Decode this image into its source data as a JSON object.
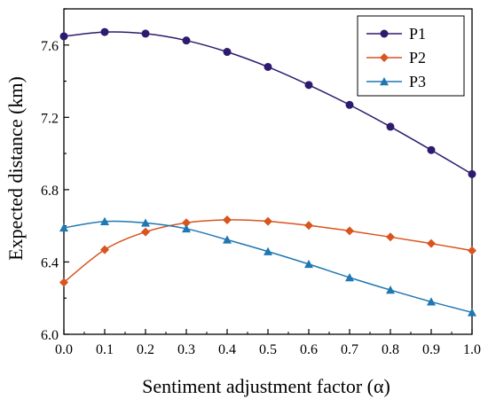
{
  "chart_data": {
    "type": "line",
    "xlabel": "Sentiment adjustment factor (α)",
    "ylabel": "Expected distance (km)",
    "x": [
      0.0,
      0.1,
      0.2,
      0.3,
      0.4,
      0.5,
      0.6,
      0.7,
      0.8,
      0.9,
      1.0
    ],
    "xlim": [
      0.0,
      1.0
    ],
    "ylim": [
      6.0,
      7.8
    ],
    "x_ticks": [
      "0.0",
      "0.1",
      "0.2",
      "0.3",
      "0.4",
      "0.5",
      "0.6",
      "0.7",
      "0.8",
      "0.9",
      "1.0"
    ],
    "y_ticks": [
      "6.0",
      "6.4",
      "6.8",
      "7.2",
      "7.6"
    ],
    "grid": false,
    "legend_position": "top-right",
    "series": [
      {
        "name": "P1",
        "color": "#2e1a6e",
        "marker": "circle",
        "values": [
          7.648,
          7.672,
          7.663,
          7.625,
          7.562,
          7.479,
          7.379,
          7.269,
          7.148,
          7.019,
          6.886
        ]
      },
      {
        "name": "P2",
        "color": "#d9541e",
        "marker": "diamond",
        "values": [
          6.287,
          6.468,
          6.566,
          6.617,
          6.633,
          6.625,
          6.602,
          6.572,
          6.538,
          6.502,
          6.463
        ]
      },
      {
        "name": "P3",
        "color": "#1f77b4",
        "marker": "triangle",
        "values": [
          6.589,
          6.624,
          6.616,
          6.584,
          6.523,
          6.458,
          6.388,
          6.314,
          6.245,
          6.18,
          6.121
        ]
      }
    ]
  }
}
